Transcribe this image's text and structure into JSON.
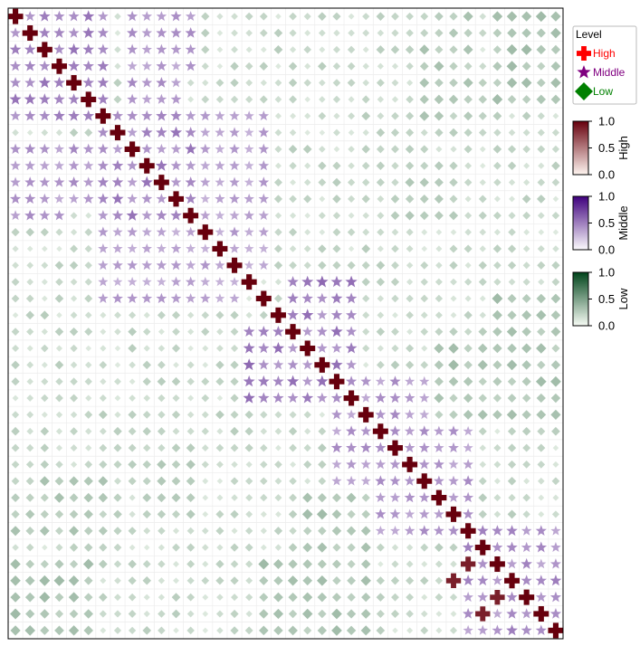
{
  "chart_data": {
    "type": "heatmap",
    "title": "",
    "xlabel": "",
    "ylabel": "",
    "n": 38,
    "levels_legend": {
      "title": "Level",
      "entries": [
        {
          "label": "High",
          "shape": "cross",
          "color": "#ff0000"
        },
        {
          "label": "Middle",
          "shape": "star",
          "color": "#800080"
        },
        {
          "label": "Low",
          "shape": "diamond",
          "color": "#008000"
        }
      ]
    },
    "colorbars": [
      {
        "name": "High",
        "range": [
          0,
          1
        ],
        "ticks": [
          "1.0",
          "0.5",
          "0.0"
        ],
        "low_color": "#fff5f0",
        "high_color": "#67000d"
      },
      {
        "name": "Middle",
        "range": [
          0,
          1
        ],
        "ticks": [
          "1.0",
          "0.5",
          "0.0"
        ],
        "low_color": "#fcfbfd",
        "high_color": "#3f007d"
      },
      {
        "name": "Low",
        "range": [
          0,
          1
        ],
        "ticks": [
          "1.0",
          "0.5",
          "0.0"
        ],
        "low_color": "#f7fcf5",
        "high_color": "#00441b"
      }
    ],
    "diagonal_value": 1.0,
    "blocks": [
      {
        "rows": [
          0,
          6
        ],
        "cols": [
          0,
          6
        ],
        "level": "middle",
        "value": 0.45
      },
      {
        "rows": [
          0,
          6
        ],
        "cols": [
          8,
          11
        ],
        "level": "middle",
        "value": 0.4
      },
      {
        "rows": [
          7,
          12
        ],
        "cols": [
          6,
          15
        ],
        "level": "middle",
        "value": 0.45
      },
      {
        "rows": [
          8,
          12
        ],
        "cols": [
          0,
          3
        ],
        "level": "middle",
        "value": 0.35
      },
      {
        "rows": [
          13,
          17
        ],
        "cols": [
          6,
          15
        ],
        "level": "middle",
        "value": 0.3
      },
      {
        "rows": [
          19,
          23
        ],
        "cols": [
          16,
          22
        ],
        "level": "middle",
        "value": 0.5
      },
      {
        "rows": [
          24,
          31
        ],
        "cols": [
          22,
          30
        ],
        "level": "middle",
        "value": 0.35
      },
      {
        "rows": [
          32,
          37
        ],
        "cols": [
          31,
          37
        ],
        "level": "middle",
        "value": 0.4
      },
      {
        "rows": [
          0,
          6
        ],
        "cols": [
          28,
          31
        ],
        "level": "low",
        "value": 0.35
      },
      {
        "rows": [
          9,
          12
        ],
        "cols": [
          26,
          30
        ],
        "level": "low",
        "value": 0.3
      },
      {
        "rows": [
          20,
          24
        ],
        "cols": [
          29,
          32
        ],
        "level": "low",
        "value": 0.4
      },
      {
        "rows": [
          33,
          37
        ],
        "cols": [
          0,
          5
        ],
        "level": "low",
        "value": 0.4
      },
      {
        "rows": [
          33,
          37
        ],
        "cols": [
          17,
          24
        ],
        "level": "low",
        "value": 0.4
      }
    ],
    "strong_offdiag_high": [
      [
        33,
        31
      ],
      [
        34,
        30
      ],
      [
        35,
        33
      ],
      [
        36,
        32
      ]
    ]
  }
}
